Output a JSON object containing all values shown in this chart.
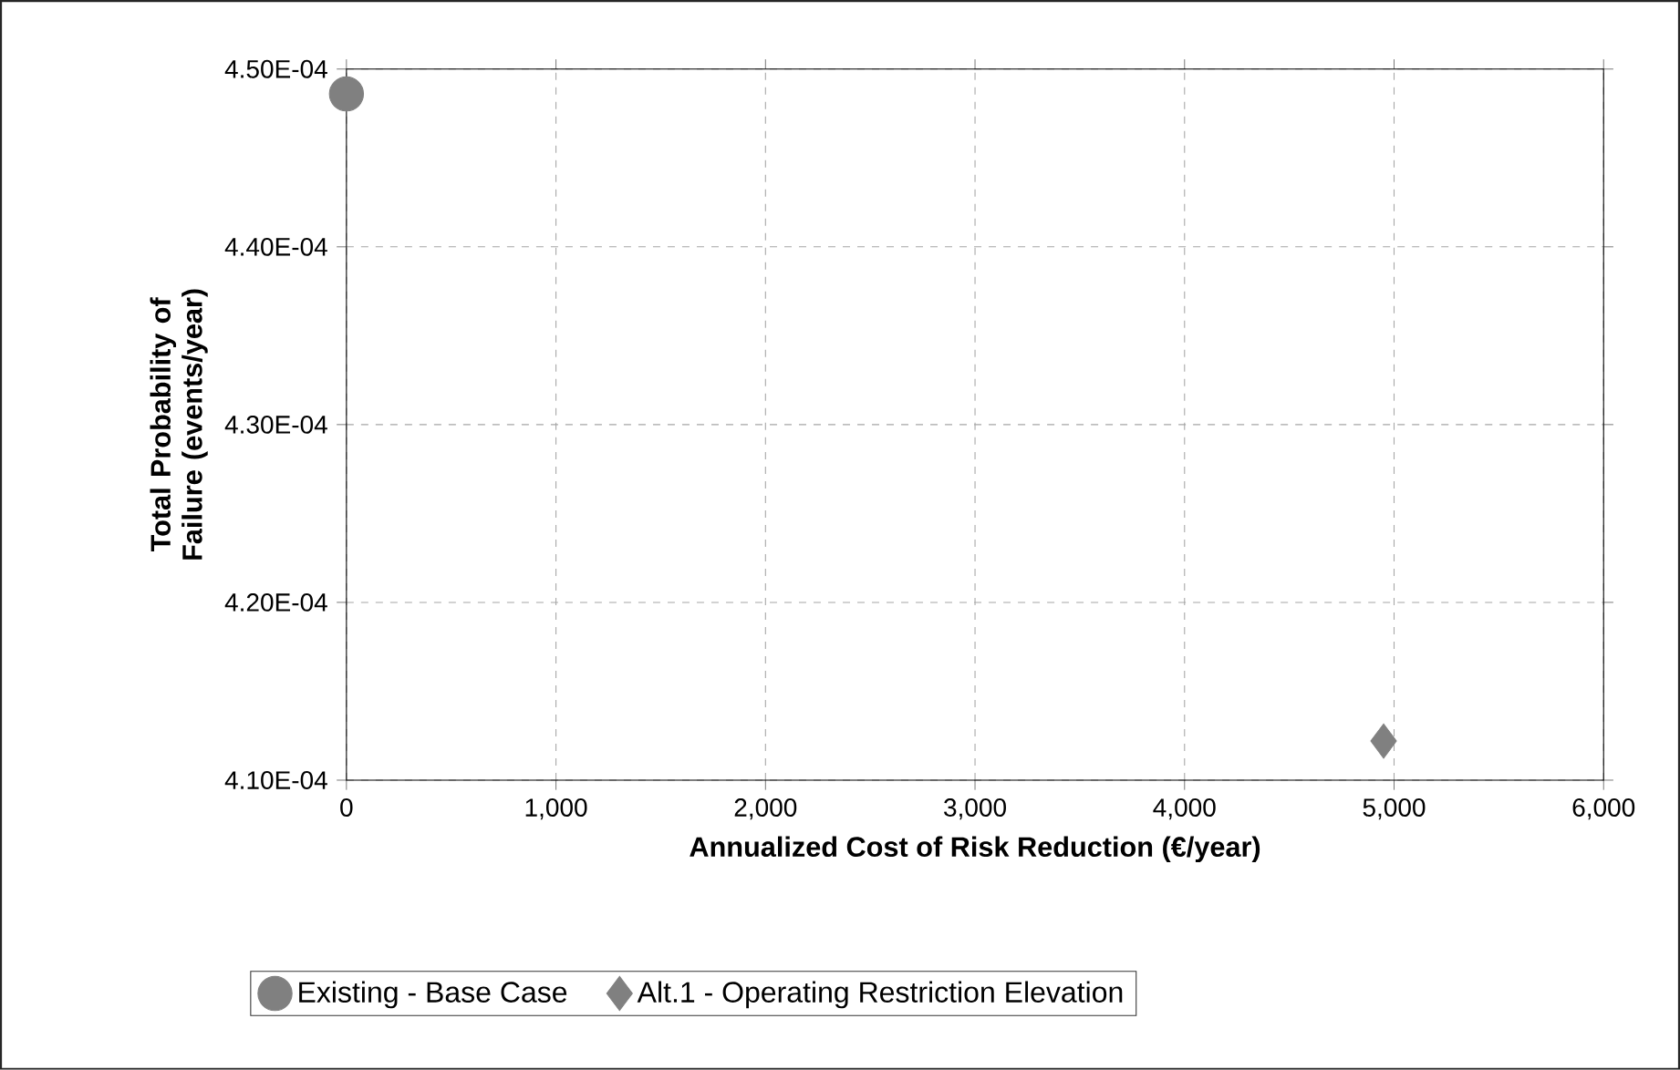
{
  "chart_data": {
    "type": "scatter",
    "xlabel": "Annualized Cost of Risk Reduction (€/year)",
    "ylabel": "Total Probability of Failure (events/year)",
    "series": [
      {
        "name": "Existing - Base Case",
        "color": "#808080",
        "marker": "circle",
        "x": [
          0
        ],
        "values": [
          0.0004486
        ]
      },
      {
        "name": "Alt.1 - Operating Restriction Elevation",
        "color": "#808080",
        "marker": "diamond",
        "x": [
          4950
        ],
        "values": [
          0.0004122
        ]
      }
    ],
    "xlim": [
      0,
      6000
    ],
    "xticks": [
      {
        "value": 0,
        "label": "0"
      },
      {
        "value": 1000,
        "label": "1,000"
      },
      {
        "value": 2000,
        "label": "2,000"
      },
      {
        "value": 3000,
        "label": "3,000"
      },
      {
        "value": 4000,
        "label": "4,000"
      },
      {
        "value": 5000,
        "label": "5,000"
      },
      {
        "value": 6000,
        "label": "6,000"
      }
    ],
    "ylim": [
      0.00041,
      0.00045
    ],
    "yticks": [
      {
        "value": 0.00041,
        "label": "4.10E-04"
      },
      {
        "value": 0.00042,
        "label": "4.20E-04"
      },
      {
        "value": 0.00043,
        "label": "4.30E-04"
      },
      {
        "value": 0.00044,
        "label": "4.40E-04"
      },
      {
        "value": 0.00045,
        "label": "4.50E-04"
      }
    ],
    "grid": true,
    "legend": "bottom"
  }
}
